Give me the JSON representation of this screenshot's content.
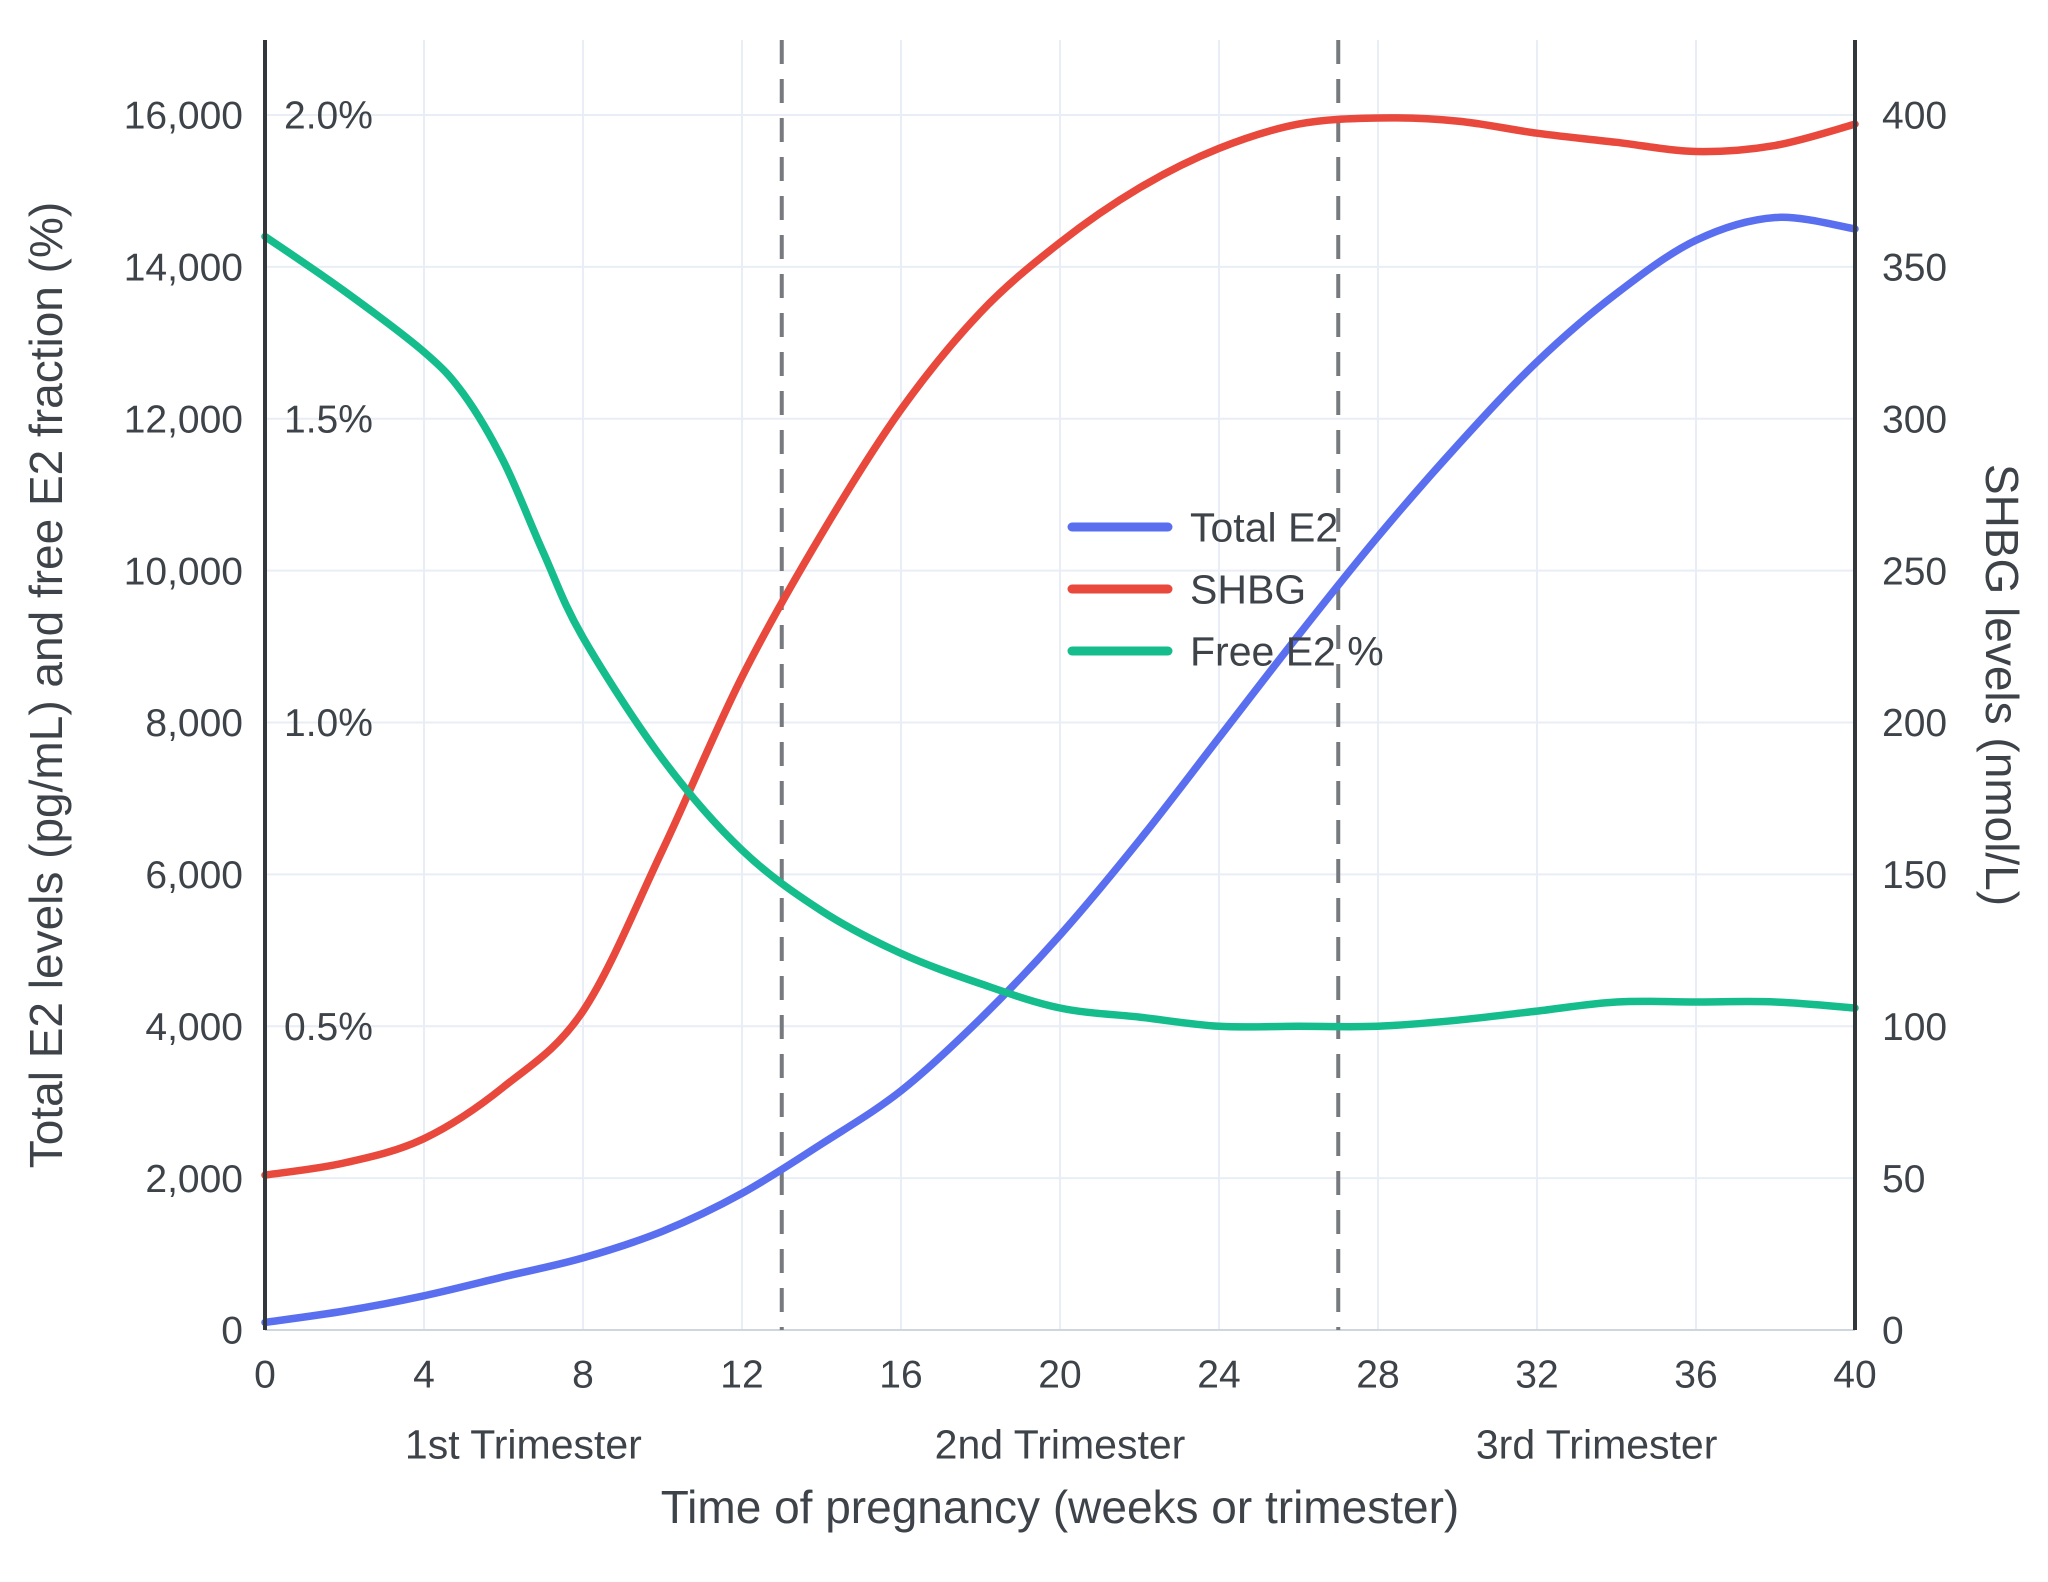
{
  "chart_data": {
    "type": "line",
    "x_label": "Time of pregnancy (weeks or trimester)",
    "y_left_label": "Total E2 levels (pg/mL) and free E2 fraction (%)",
    "y_right_label": "SHBG levels (nmol/L)",
    "x_range": [
      0,
      40
    ],
    "y_left_range": [
      0,
      16000
    ],
    "y_right_range": [
      0,
      400
    ],
    "y_percent_range": [
      0,
      2.0
    ],
    "x_ticks": [
      0,
      4,
      8,
      12,
      16,
      20,
      24,
      28,
      32,
      36,
      40
    ],
    "y_left_ticks": [
      {
        "value": 0,
        "label": "0"
      },
      {
        "value": 2000,
        "label": "2,000"
      },
      {
        "value": 4000,
        "label": "4,000"
      },
      {
        "value": 6000,
        "label": "6,000"
      },
      {
        "value": 8000,
        "label": "8,000"
      },
      {
        "value": 10000,
        "label": "10,000"
      },
      {
        "value": 12000,
        "label": "12,000"
      },
      {
        "value": 14000,
        "label": "14,000"
      },
      {
        "value": 16000,
        "label": "16,000"
      }
    ],
    "y_right_ticks": [
      {
        "value": 0,
        "label": "0"
      },
      {
        "value": 50,
        "label": "50"
      },
      {
        "value": 100,
        "label": "100"
      },
      {
        "value": 150,
        "label": "150"
      },
      {
        "value": 200,
        "label": "200"
      },
      {
        "value": 250,
        "label": "250"
      },
      {
        "value": 300,
        "label": "300"
      },
      {
        "value": 350,
        "label": "350"
      },
      {
        "value": 400,
        "label": "400"
      }
    ],
    "percent_tick_labels": [
      {
        "value": 2.0,
        "label": "2.0%"
      },
      {
        "value": 1.5,
        "label": "1.5%"
      },
      {
        "value": 1.0,
        "label": "1.0%"
      },
      {
        "value": 0.5,
        "label": "0.5%"
      }
    ],
    "trimester_dividers_weeks": [
      13,
      27
    ],
    "trimester_labels": [
      {
        "label": "1st Trimester",
        "center_week": 6.5
      },
      {
        "label": "2nd Trimester",
        "center_week": 20
      },
      {
        "label": "3rd Trimester",
        "center_week": 33.5
      }
    ],
    "legend": {
      "position": "right-center",
      "items": [
        "Total E2",
        "SHBG",
        "Free E2 %"
      ]
    },
    "series": [
      {
        "name": "Total E2",
        "color": "#5a6ff0",
        "axis": "left",
        "units": "pg/mL",
        "x": [
          0,
          2,
          4,
          6,
          8,
          10,
          12,
          14,
          16,
          18,
          20,
          22,
          24,
          26,
          28,
          30,
          32,
          34,
          36,
          38,
          40
        ],
        "y": [
          100,
          250,
          450,
          700,
          950,
          1300,
          1800,
          2450,
          3150,
          4100,
          5200,
          6450,
          7800,
          9150,
          10450,
          11650,
          12750,
          13650,
          14350,
          14650,
          14500
        ]
      },
      {
        "name": "SHBG",
        "color": "#e8493c",
        "axis": "right",
        "units": "nmol/L",
        "x": [
          0,
          2,
          4,
          6,
          8,
          10,
          12,
          14,
          16,
          18,
          20,
          22,
          24,
          26,
          28,
          30,
          32,
          34,
          36,
          38,
          40
        ],
        "y": [
          51,
          55,
          63,
          80,
          105,
          158,
          215,
          262,
          303,
          335,
          358,
          376,
          389,
          397,
          399,
          398,
          394,
          391,
          388,
          390,
          397
        ]
      },
      {
        "name": "Free E2 %",
        "color": "#16bd8c",
        "axis": "percent",
        "units": "%",
        "x": [
          0,
          2,
          4,
          5,
          6,
          7,
          8,
          10,
          12,
          14,
          16,
          18,
          20,
          22,
          24,
          26,
          28,
          30,
          32,
          34,
          36,
          38,
          40
        ],
        "y": [
          1.8,
          1.71,
          1.61,
          1.54,
          1.43,
          1.28,
          1.14,
          0.94,
          0.79,
          0.69,
          0.62,
          0.57,
          0.53,
          0.515,
          0.5,
          0.5,
          0.5,
          0.51,
          0.525,
          0.54,
          0.54,
          0.54,
          0.53
        ]
      }
    ]
  },
  "colors": {
    "grid": "#e9eef6",
    "axis_spine": "#32373c",
    "bottom_line": "#cfd6dd",
    "dashed_divider": "#76797d",
    "text": "#3d4349",
    "background": "#ffffff"
  }
}
